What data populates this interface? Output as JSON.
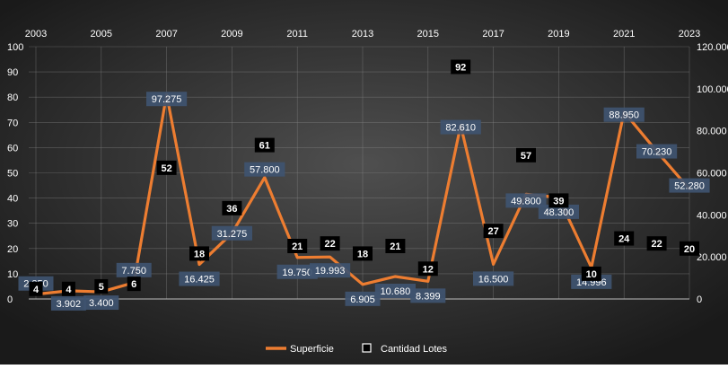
{
  "chart_data": {
    "type": "line",
    "title": "",
    "xlabel": "",
    "ylabel": "",
    "x": [
      2003,
      2004,
      2005,
      2006,
      2007,
      2008,
      2009,
      2010,
      2011,
      2012,
      2013,
      2014,
      2015,
      2016,
      2017,
      2018,
      2019,
      2020,
      2021,
      2022,
      2023
    ],
    "x_ticks": [
      "2003",
      "2005",
      "2007",
      "2009",
      "2011",
      "2013",
      "2015",
      "2017",
      "2019",
      "2021",
      "2023"
    ],
    "left_axis": {
      "ylim": [
        0,
        100
      ],
      "ticks": [
        "0",
        "10",
        "20",
        "30",
        "40",
        "50",
        "60",
        "70",
        "80",
        "90",
        "100"
      ]
    },
    "right_axis": {
      "ylim": [
        0,
        120000
      ],
      "ticks": [
        "0",
        "20.000",
        "40.000",
        "60.000",
        "80.000",
        "100.000",
        "120.000"
      ]
    },
    "series": [
      {
        "name": "Superficie",
        "axis": "right",
        "color": "#ed7d31",
        "values": [
          2250,
          3902,
          3400,
          7750,
          97275,
          16425,
          31275,
          57800,
          19750,
          19993,
          6905,
          10680,
          8399,
          82610,
          16500,
          49800,
          48300,
          14996,
          88950,
          70230,
          52280
        ],
        "labels": [
          "2.250",
          "3.902",
          "3.400",
          "7.750",
          "97.275",
          "16.425",
          "31.275",
          "57.800",
          "19.750",
          "19.993",
          "6.905",
          "10.680",
          "8.399",
          "82.610",
          "16.500",
          "49.800",
          "48.300",
          "14.996",
          "88.950",
          "70.230",
          "52.280"
        ]
      },
      {
        "name": "Cantidad Lotes",
        "axis": "left",
        "color": "#000000",
        "values": [
          4,
          4,
          5,
          6,
          52,
          18,
          36,
          61,
          21,
          22,
          18,
          21,
          12,
          92,
          27,
          57,
          39,
          10,
          24,
          22,
          20
        ],
        "labels": [
          "4",
          "4",
          "5",
          "6",
          "52",
          "18",
          "36",
          "61",
          "21",
          "22",
          "18",
          "21",
          "12",
          "92",
          "27",
          "57",
          "39",
          "10",
          "24",
          "22",
          "20"
        ]
      }
    ],
    "grid": true,
    "legend_position": "bottom",
    "colors": {
      "background_outer": "#1a1a1a",
      "background_center": "#4f4f4f",
      "grid": "#8a8a8a",
      "text": "#ffffff",
      "label_box": "#3f5470"
    }
  }
}
